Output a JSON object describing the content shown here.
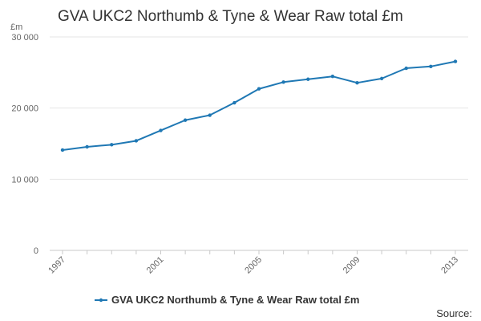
{
  "chart_data": {
    "type": "line",
    "title": "GVA UKC2 Northumb & Tyne & Wear Raw total £m",
    "ylabel": "£m",
    "xlabel": "",
    "x": [
      1997,
      1998,
      1999,
      2000,
      2001,
      2002,
      2003,
      2004,
      2005,
      2006,
      2007,
      2008,
      2009,
      2010,
      2011,
      2012,
      2013
    ],
    "xlim": [
      1997,
      2013
    ],
    "ylim": [
      0,
      30000
    ],
    "y_ticks": [
      0,
      10000,
      20000,
      30000
    ],
    "y_tick_labels": [
      "0",
      "10 000",
      "20 000",
      "30 000"
    ],
    "x_ticks": [
      1997,
      2001,
      2005,
      2009,
      2013
    ],
    "x_tick_labels": [
      "1997",
      "2001",
      "2005",
      "2009",
      "2013"
    ],
    "grid": "horizontal",
    "legend_position": "bottom",
    "series": [
      {
        "name": "GVA UKC2 Northumb & Tyne & Wear Raw total £m",
        "color": "#1f78b4",
        "values": [
          14100,
          14550,
          14850,
          15400,
          16850,
          18300,
          19000,
          20750,
          22700,
          23650,
          24050,
          24450,
          23550,
          24150,
          25600,
          25850,
          26550
        ]
      }
    ]
  },
  "footer": {
    "source_label": "Source:"
  }
}
